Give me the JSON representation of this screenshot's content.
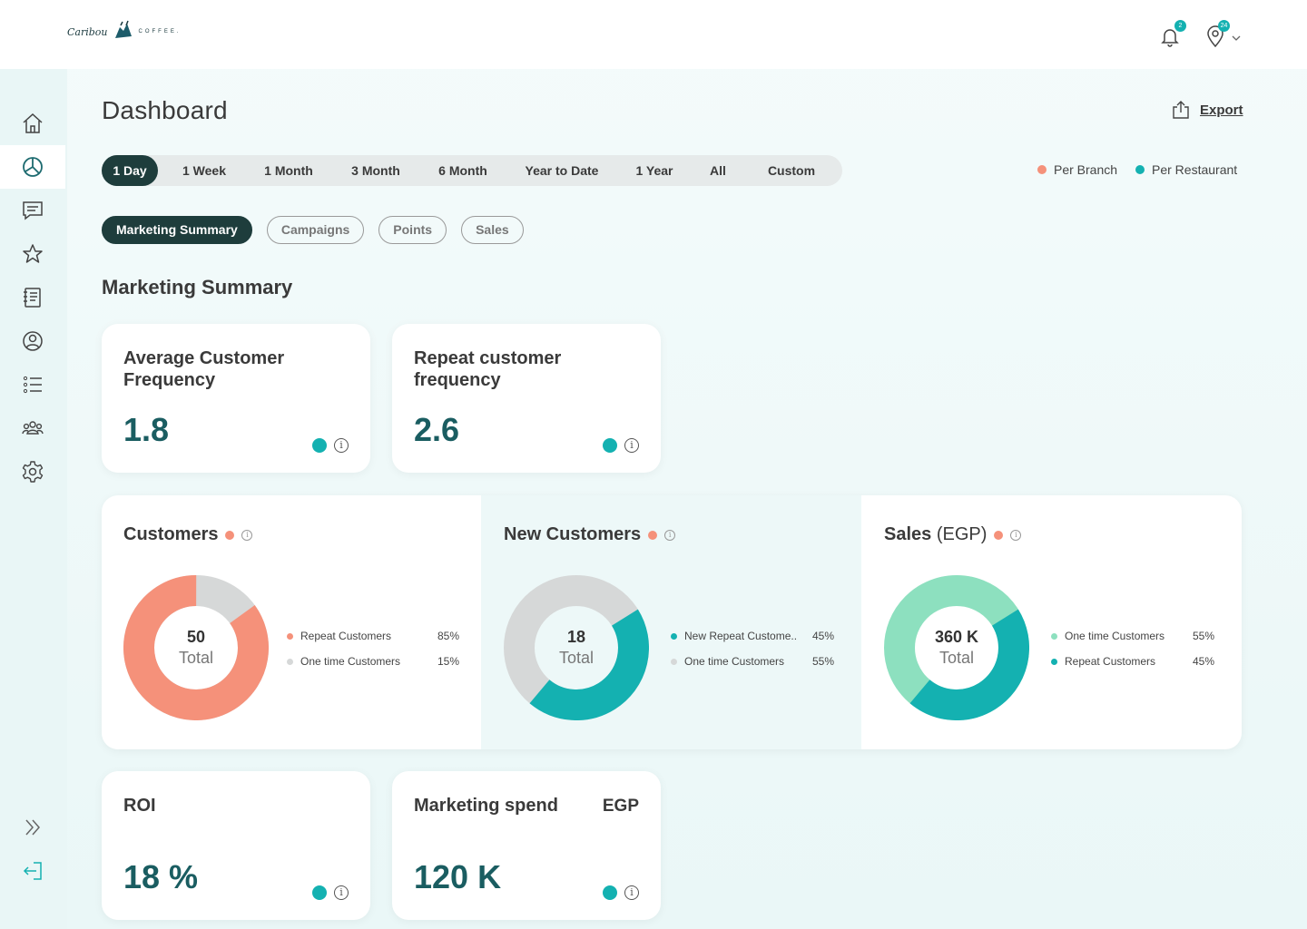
{
  "brand": {
    "logo_script": "Caribou",
    "logo_word": "COFFEE."
  },
  "header": {
    "notifications_count": "2",
    "location_count": "24"
  },
  "page": {
    "title": "Dashboard",
    "export_label": "Export"
  },
  "ranges": [
    "1 Day",
    "1 Week",
    "1 Month",
    "3 Month",
    "6 Month",
    "Year to Date",
    "1 Year",
    "All",
    "Custom"
  ],
  "active_range": "1 Day",
  "legend": {
    "per_branch": "Per Branch",
    "per_restaurant": "Per Restaurant"
  },
  "tabs": [
    "Marketing Summary",
    "Campaigns",
    "Points",
    "Sales"
  ],
  "section_title": "Marketing Summary",
  "kpis": {
    "avg_freq": {
      "title": "Average Customer Frequency",
      "value": "1.8"
    },
    "repeat_freq": {
      "title": "Repeat customer frequency",
      "value": "2.6"
    },
    "roi": {
      "title": "ROI",
      "value": "18 %"
    },
    "spend": {
      "title": "Marketing spend",
      "unit": "EGP",
      "value": "120 K"
    }
  },
  "donuts": {
    "customers": {
      "title": "Customers",
      "center_value": "50",
      "center_label": "Total",
      "items": [
        {
          "name": "Repeat Customers",
          "pct": "85%"
        },
        {
          "name": "One time Customers",
          "pct": "15%"
        }
      ]
    },
    "new_customers": {
      "title": "New Customers",
      "center_value": "18",
      "center_label": "Total",
      "items": [
        {
          "name": "New Repeat Custome..",
          "pct": "45%"
        },
        {
          "name": "One time Customers",
          "pct": "55%"
        }
      ]
    },
    "sales": {
      "title_main": "Sales",
      "title_unit": "(EGP)",
      "center_value": "360 K",
      "center_label": "Total",
      "items": [
        {
          "name": "One time Customers",
          "pct": "55%"
        },
        {
          "name": "Repeat Customers",
          "pct": "45%"
        }
      ]
    }
  },
  "colors": {
    "accent_dark": "#1e3d3c",
    "teal": "#14b1b1",
    "coral": "#f5917a",
    "mint": "#8de0bf",
    "grey": "#d6d8d8"
  }
}
